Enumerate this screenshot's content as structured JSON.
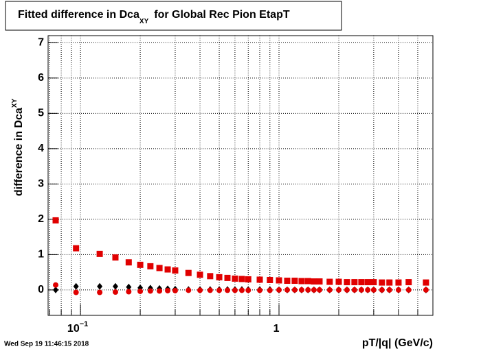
{
  "chart_data": {
    "type": "scatter",
    "title": {
      "text": "Fitted difference in Dca",
      "sub": "XY",
      "rest": "for Global Rec Pion EtapT"
    },
    "y_label": {
      "text": "difference in Dca",
      "sub": "XY"
    },
    "x_label": "pT/|q| (GeV/c)",
    "timestamp": "Wed Sep 19 11:46:15 2018",
    "x_log": true,
    "grid": true,
    "xlim": [
      0.0687,
      5.96
    ],
    "ylim": [
      -0.72,
      7.2
    ],
    "xticks": [
      {
        "value": 0.1,
        "label": "10",
        "exponent": "−1"
      },
      1
    ],
    "xminor": [
      0.07,
      0.08,
      0.09,
      0.2,
      0.3,
      0.4,
      0.5,
      0.6,
      0.7,
      0.8,
      0.9,
      2,
      3,
      4,
      5
    ],
    "yticks": [
      0,
      1,
      2,
      3,
      4,
      5,
      6,
      7
    ],
    "x": [
      0.075,
      0.095,
      0.125,
      0.15,
      0.175,
      0.2,
      0.225,
      0.25,
      0.275,
      0.3,
      0.35,
      0.4,
      0.45,
      0.5,
      0.55,
      0.6,
      0.65,
      0.7,
      0.8,
      0.9,
      1.0,
      1.1,
      1.2,
      1.3,
      1.4,
      1.5,
      1.6,
      1.8,
      2.0,
      2.2,
      2.4,
      2.6,
      2.8,
      3.0,
      3.3,
      3.6,
      4.0,
      4.5,
      5.5
    ],
    "series": [
      {
        "marker": "square",
        "color": "#e00000",
        "values": [
          1.97,
          1.18,
          1.02,
          0.92,
          0.78,
          0.71,
          0.67,
          0.62,
          0.58,
          0.55,
          0.48,
          0.43,
          0.39,
          0.36,
          0.34,
          0.32,
          0.31,
          0.3,
          0.29,
          0.28,
          0.27,
          0.26,
          0.26,
          0.25,
          0.25,
          0.24,
          0.24,
          0.23,
          0.23,
          0.22,
          0.22,
          0.22,
          0.22,
          0.22,
          0.21,
          0.21,
          0.21,
          0.22,
          0.21
        ]
      },
      {
        "marker": "diamond",
        "color": "#000000",
        "values": [
          0.0,
          0.1,
          0.1,
          0.1,
          0.08,
          0.06,
          0.05,
          0.04,
          0.03,
          0.02,
          0.01,
          0.01,
          0.01,
          0.01,
          0.01,
          0.01,
          0.01,
          0.01,
          0.01,
          0.01,
          0.0,
          0.0,
          0.0,
          0.0,
          0.0,
          0.0,
          0.0,
          0.0,
          0.0,
          0.0,
          0.0,
          0.0,
          0.0,
          0.0,
          0.0,
          0.0,
          0.0,
          0.0,
          0.0
        ]
      },
      {
        "marker": "circle",
        "color": "#e00000",
        "values": [
          0.14,
          -0.07,
          -0.07,
          -0.06,
          -0.05,
          -0.04,
          -0.03,
          -0.03,
          -0.02,
          -0.02,
          -0.01,
          -0.01,
          -0.01,
          -0.01,
          -0.01,
          -0.01,
          -0.01,
          -0.01,
          -0.01,
          -0.01,
          0.0,
          0.0,
          0.0,
          0.0,
          0.0,
          0.0,
          0.0,
          0.0,
          0.0,
          0.0,
          0.0,
          0.0,
          0.0,
          0.0,
          0.0,
          0.0,
          0.0,
          0.0,
          0.0
        ]
      }
    ]
  }
}
